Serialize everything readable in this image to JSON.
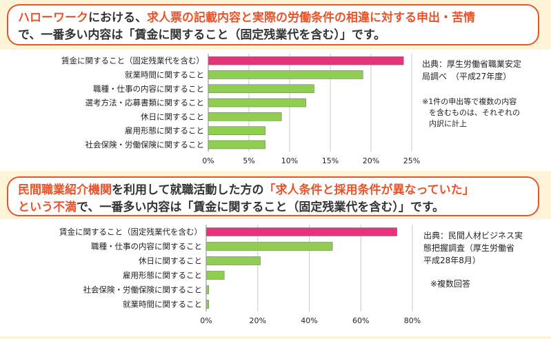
{
  "banner1": {
    "part1": "ハローワーク",
    "part2": "における、",
    "part3": "求人票の記載内容と実際の労働条件の相違に対する申出・苦情",
    "part4": "で、一番多い内容は「賃金に関すること（固定残業代を含む）」です。"
  },
  "banner2": {
    "part1": "民間職業紹介機関",
    "part2": "を利用して就職活動した方の",
    "part3": "「求人条件と採用条件が異なっていた」",
    "part4": "という不満",
    "part5": "で、一番多い内容は「賃金に関すること（固定残業代を含む）」です。"
  },
  "source1": {
    "line1": "出典：厚生労働省職業安定",
    "line2": "局調べ　（平成27年度）"
  },
  "note1": {
    "line1": "※1件の申出等で複数の内容",
    "line2": "を含むものは、それぞれの",
    "line3": "内訳に計上"
  },
  "source2": {
    "line1": "出典：民間人材ビジネス実",
    "line2": "態把握調査（厚生労働省",
    "line3": "平成28年8月）"
  },
  "note2": "※複数回答",
  "colors": {
    "highlight_bar": "#e8337c",
    "bar": "#8fce4e",
    "accent": "#e8542a"
  },
  "chart_data": [
    {
      "type": "bar",
      "orientation": "horizontal",
      "categories": [
        "賃金に関すること（固定残業代を含む）",
        "就業時間に関すること",
        "職種・仕事の内容に関すること",
        "選考方法・応募書類に関すること",
        "休日に関すること",
        "雇用形態に関すること",
        "社会保険・労働保険に関すること"
      ],
      "values": [
        24,
        19,
        13,
        12,
        9,
        7,
        7
      ],
      "xlim": [
        0,
        25
      ],
      "ticks": [
        "0%",
        "5%",
        "10%",
        "15%",
        "20%",
        "25%"
      ],
      "grid": true
    },
    {
      "type": "bar",
      "orientation": "horizontal",
      "categories": [
        "賃金に関すること（固定残業代を含む）",
        "職種・仕事の内容に関すること",
        "休日に関すること",
        "雇用形態に関すること",
        "社会保険・労働保険に関すること",
        "就業時間に関すること"
      ],
      "values": [
        74,
        49,
        21,
        7,
        1,
        1
      ],
      "xlim": [
        0,
        80
      ],
      "ticks": [
        "0%",
        "20%",
        "40%",
        "60%",
        "80%"
      ],
      "grid": true
    }
  ]
}
